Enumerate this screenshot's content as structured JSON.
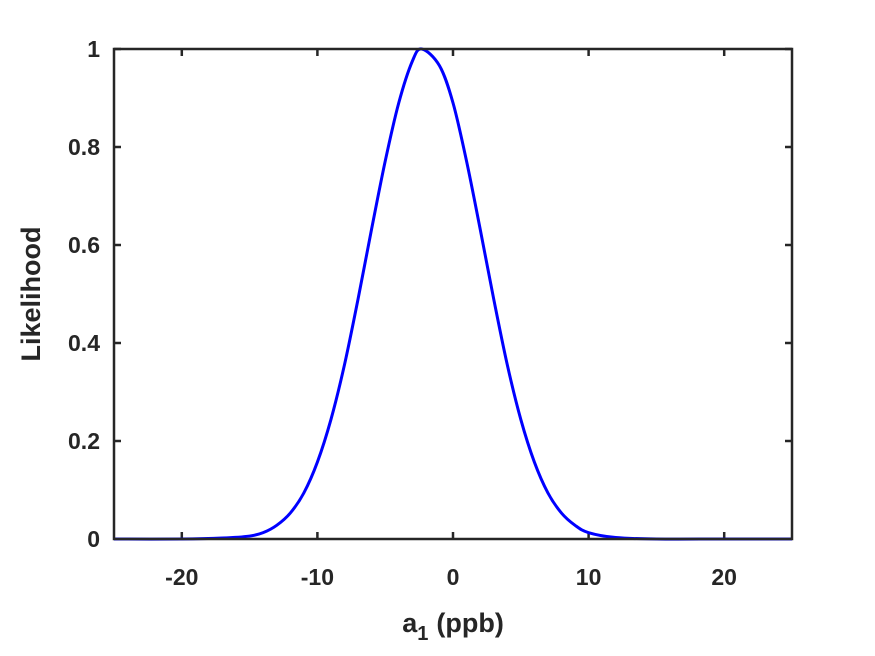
{
  "chart_data": {
    "type": "line",
    "xlabel": "a",
    "xlabel_subscript": "1",
    "xlabel_unit": "(ppb)",
    "ylabel": "Likelihood",
    "xlim": [
      -25,
      25
    ],
    "ylim": [
      0,
      1
    ],
    "xticks": [
      -20,
      -10,
      0,
      10,
      20
    ],
    "xtick_labels": [
      "-20",
      "-10",
      "0",
      "10",
      "20"
    ],
    "yticks": [
      0,
      0.2,
      0.4,
      0.6,
      0.8,
      1
    ],
    "ytick_labels": [
      "0",
      "0.2",
      "0.4",
      "0.6",
      "0.8",
      "1"
    ],
    "grid": false,
    "series": [
      {
        "color": "#0000ff",
        "x": [
          -25,
          -20,
          -17,
          -15,
          -14,
          -13,
          -12,
          -11,
          -10,
          -9,
          -8,
          -7,
          -6,
          -5,
          -4,
          -3,
          -2.3,
          -1,
          0,
          1,
          2,
          3,
          4,
          5,
          6,
          7,
          8,
          9,
          10,
          12,
          15,
          20,
          25
        ],
        "y": [
          0,
          0,
          0.002,
          0.006,
          0.013,
          0.028,
          0.053,
          0.094,
          0.157,
          0.244,
          0.356,
          0.49,
          0.633,
          0.771,
          0.89,
          0.975,
          1.0,
          0.966,
          0.89,
          0.771,
          0.633,
          0.49,
          0.356,
          0.244,
          0.157,
          0.094,
          0.053,
          0.028,
          0.013,
          0.003,
          0.0,
          0,
          0
        ]
      }
    ]
  }
}
